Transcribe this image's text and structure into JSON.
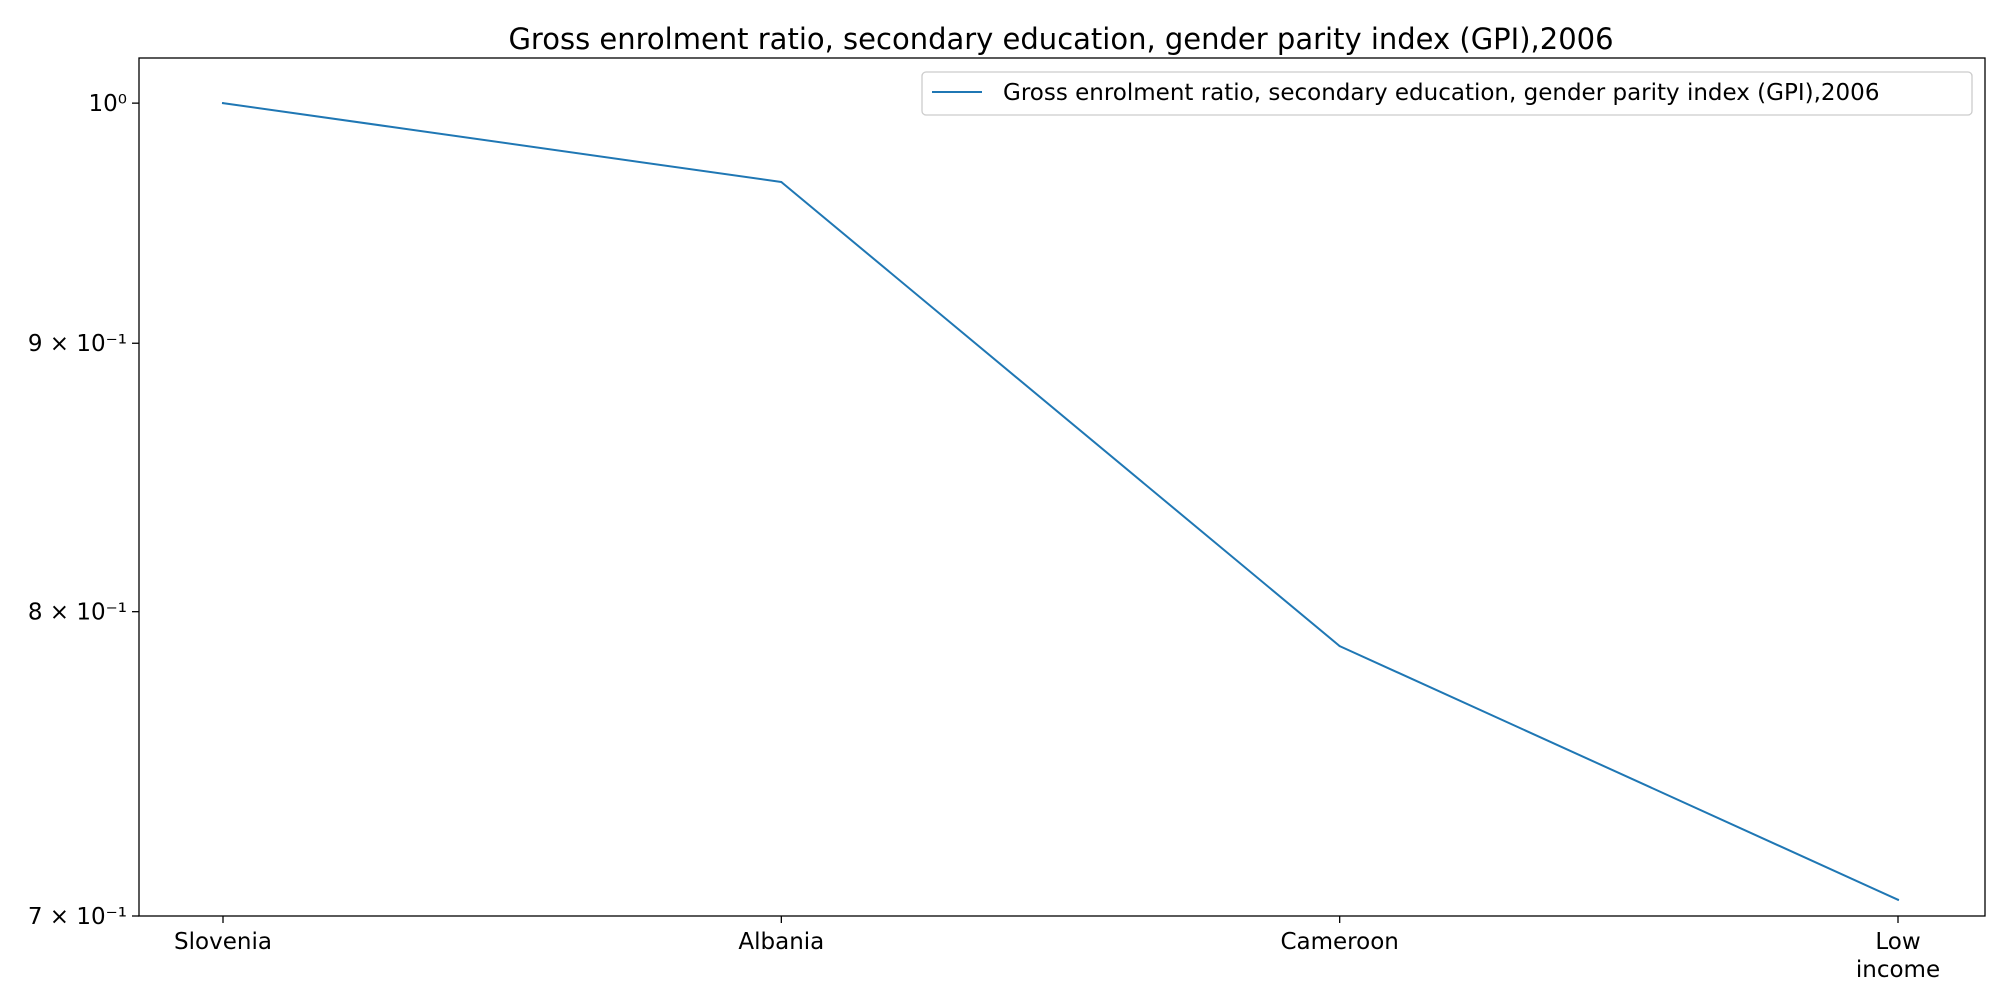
{
  "chart_data": {
    "type": "line",
    "title": "Gross enrolment ratio, secondary education, gender parity index (GPI),2006",
    "xlabel": "",
    "ylabel": "",
    "y_scale": "log",
    "ylim": [
      0.7,
      1.02
    ],
    "categories": [
      "Slovenia",
      "Albania",
      "Cameroon",
      "Low income"
    ],
    "y_ticks": [
      {
        "value": 1.0,
        "label": "10⁰"
      },
      {
        "value": 0.9,
        "label": "9 × 10⁻¹"
      },
      {
        "value": 0.8,
        "label": "8 × 10⁻¹"
      },
      {
        "value": 0.7,
        "label": "7 × 10⁻¹"
      }
    ],
    "series": [
      {
        "name": "Gross enrolment ratio, secondary education, gender parity index (GPI),2006",
        "color": "#1f77b4",
        "values": [
          1.0,
          0.966,
          0.788,
          0.705
        ]
      }
    ],
    "grid": false,
    "legend_position": "top-right"
  }
}
